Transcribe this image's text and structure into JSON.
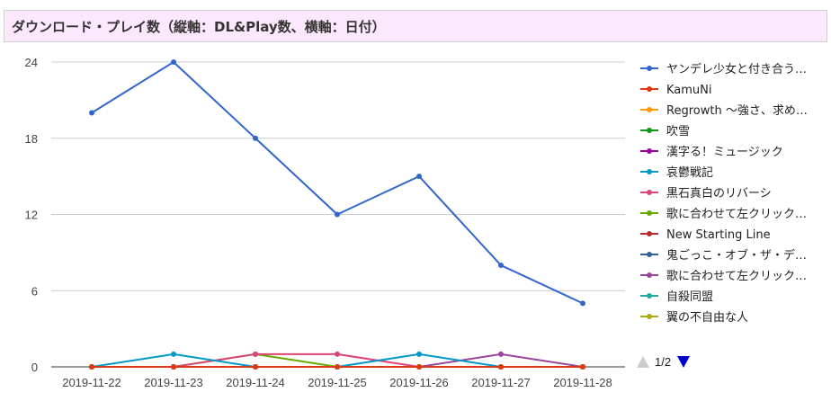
{
  "title": "ダウンロード・プレイ数（縦軸：DL&Play数、横軸：日付）",
  "pager": {
    "label": "1/2",
    "prev_icon": "triangle-up-icon",
    "next_icon": "triangle-down-icon",
    "prev_color": "#cccccc",
    "next_color": "#0000cc"
  },
  "chart_data": {
    "type": "line",
    "categories": [
      "2019-11-22",
      "2019-11-23",
      "2019-11-24",
      "2019-11-25",
      "2019-11-26",
      "2019-11-27",
      "2019-11-28"
    ],
    "ylim": [
      0,
      24
    ],
    "yticks": [
      0,
      6,
      12,
      18,
      24
    ],
    "grid": true,
    "legend_position": "right",
    "series": [
      {
        "name": "ヤンデレ少女と付き合う…",
        "color": "#3366cc",
        "values": [
          20,
          24,
          18,
          12,
          15,
          8,
          5
        ]
      },
      {
        "name": "KamuNi",
        "color": "#dc3912",
        "values": [
          0,
          0,
          0,
          0,
          0,
          0,
          0
        ]
      },
      {
        "name": "Regrowth ～強さ、求め…",
        "color": "#ff9900",
        "values": [
          0,
          0,
          0,
          0,
          0,
          0,
          0
        ]
      },
      {
        "name": "吹雪",
        "color": "#109618",
        "values": [
          0,
          0,
          0,
          0,
          0,
          0,
          0
        ]
      },
      {
        "name": "漢字る！ミュージック",
        "color": "#990099",
        "values": [
          0,
          0,
          0,
          0,
          0,
          0,
          0
        ]
      },
      {
        "name": "哀鬱戦記",
        "color": "#0099c6",
        "values": [
          0,
          1,
          0,
          0,
          1,
          0,
          0
        ]
      },
      {
        "name": "黒石真白のリバーシ",
        "color": "#dd4477",
        "values": [
          0,
          0,
          1,
          1,
          0,
          0,
          0
        ]
      },
      {
        "name": "歌に合わせて左クリック…",
        "color": "#66aa00",
        "values": [
          0,
          0,
          1,
          0,
          0,
          0,
          0
        ]
      },
      {
        "name": "New Starting Line",
        "color": "#b82e2e",
        "values": [
          0,
          0,
          0,
          0,
          0,
          0,
          0
        ]
      },
      {
        "name": "鬼ごっこ・オブ・ザ・デ…",
        "color": "#316395",
        "values": [
          0,
          0,
          0,
          0,
          0,
          0,
          0
        ]
      },
      {
        "name": "歌に合わせて左クリック…",
        "color": "#994499",
        "values": [
          0,
          0,
          0,
          0,
          0,
          1,
          0
        ]
      },
      {
        "name": "自殺同盟",
        "color": "#22aa99",
        "values": [
          0,
          0,
          0,
          0,
          0,
          0,
          0
        ]
      },
      {
        "name": "翼の不自由な人",
        "color": "#aaaa11",
        "values": [
          0,
          0,
          0,
          0,
          0,
          0,
          0
        ]
      },
      {
        "name": "",
        "color": "#6633cc",
        "values": [
          0,
          0,
          0,
          0,
          0,
          0,
          0
        ]
      }
    ]
  }
}
